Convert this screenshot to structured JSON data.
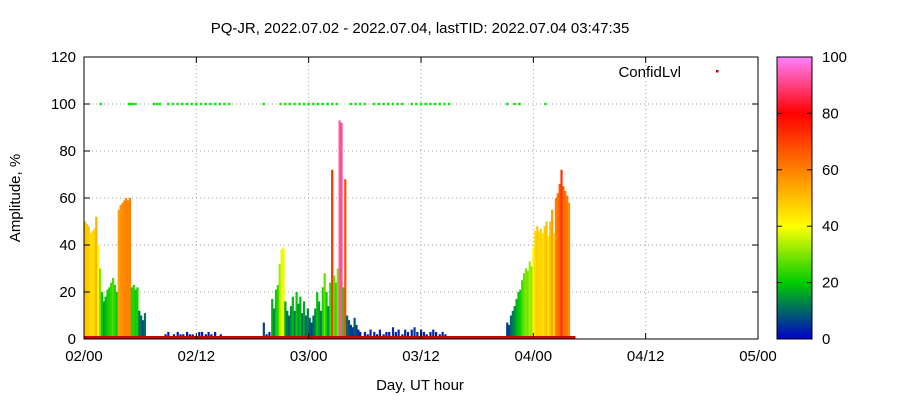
{
  "chart_data": {
    "type": "bar",
    "title": "PQ-JR, 2022.07.02 - 2022.07.04, lastTID: 2022.07.04 03:47:35",
    "xlabel": "Day, UT hour",
    "ylabel": "Amplitude, %",
    "xlim": [
      0,
      72
    ],
    "ylim": [
      0,
      120
    ],
    "x_ticks": [
      "02/00",
      "02/12",
      "03/00",
      "03/12",
      "04/00",
      "04/12",
      "05/00"
    ],
    "y_ticks": [
      "0",
      "20",
      "40",
      "60",
      "80",
      "100",
      "120"
    ],
    "grid": true,
    "legend": {
      "label": "ConfidLvl",
      "placement": "top-right",
      "color": "#cc0000"
    },
    "colorbar": {
      "range": [
        0,
        100
      ],
      "ticks": [
        "0",
        "20",
        "40",
        "60",
        "80",
        "100"
      ],
      "colors": [
        "#0000cc",
        "#00cc00",
        "#ffff00",
        "#ff8000",
        "#ff0000",
        "#ff80ff"
      ]
    },
    "series": [
      {
        "name": "Amplitude",
        "color_by_value": true,
        "points": [
          [
            0.1,
            50
          ],
          [
            0.3,
            49
          ],
          [
            0.5,
            48
          ],
          [
            0.7,
            45
          ],
          [
            0.9,
            46
          ],
          [
            1.1,
            47
          ],
          [
            1.3,
            52
          ],
          [
            1.5,
            40
          ],
          [
            1.7,
            30
          ],
          [
            1.9,
            20
          ],
          [
            2.1,
            16
          ],
          [
            2.3,
            18
          ],
          [
            2.5,
            21
          ],
          [
            2.7,
            22
          ],
          [
            2.9,
            24
          ],
          [
            3.1,
            26
          ],
          [
            3.3,
            23
          ],
          [
            3.5,
            20
          ],
          [
            3.7,
            55
          ],
          [
            3.9,
            57
          ],
          [
            4.1,
            58
          ],
          [
            4.3,
            59
          ],
          [
            4.5,
            60
          ],
          [
            4.7,
            59
          ],
          [
            4.9,
            60
          ],
          [
            5.1,
            22
          ],
          [
            5.3,
            23
          ],
          [
            5.5,
            21
          ],
          [
            5.7,
            22
          ],
          [
            5.9,
            12
          ],
          [
            6.1,
            10
          ],
          [
            6.3,
            8
          ],
          [
            6.5,
            11
          ],
          [
            8.5,
            1
          ],
          [
            8.7,
            2
          ],
          [
            9,
            3
          ],
          [
            9.3,
            1
          ],
          [
            9.6,
            2
          ],
          [
            10,
            3
          ],
          [
            10.3,
            2
          ],
          [
            10.6,
            2
          ],
          [
            11,
            3
          ],
          [
            11.3,
            2
          ],
          [
            11.6,
            2
          ],
          [
            12,
            1
          ],
          [
            12.3,
            3
          ],
          [
            12.6,
            3
          ],
          [
            13,
            2
          ],
          [
            13.3,
            3
          ],
          [
            13.6,
            2
          ],
          [
            14,
            3
          ],
          [
            14.3,
            1
          ],
          [
            14.6,
            2
          ],
          [
            15,
            1
          ],
          [
            15.3,
            1
          ],
          [
            19.2,
            7
          ],
          [
            19.5,
            2
          ],
          [
            19.8,
            3
          ],
          [
            20.1,
            17
          ],
          [
            20.3,
            13
          ],
          [
            20.5,
            21
          ],
          [
            20.7,
            23
          ],
          [
            20.9,
            32
          ],
          [
            21.1,
            38
          ],
          [
            21.3,
            39
          ],
          [
            21.5,
            16
          ],
          [
            21.7,
            12
          ],
          [
            21.9,
            10
          ],
          [
            22.1,
            14
          ],
          [
            22.3,
            18
          ],
          [
            22.5,
            12
          ],
          [
            22.7,
            20
          ],
          [
            22.9,
            15
          ],
          [
            23.1,
            18
          ],
          [
            23.3,
            11
          ],
          [
            23.5,
            16
          ],
          [
            23.7,
            10
          ],
          [
            23.9,
            13
          ],
          [
            24.1,
            9
          ],
          [
            24.3,
            7
          ],
          [
            24.5,
            10
          ],
          [
            24.7,
            13
          ],
          [
            24.9,
            20
          ],
          [
            25.1,
            16
          ],
          [
            25.3,
            12
          ],
          [
            25.5,
            22
          ],
          [
            25.7,
            28
          ],
          [
            25.9,
            20
          ],
          [
            26.1,
            14
          ],
          [
            26.3,
            24
          ],
          [
            26.5,
            72
          ],
          [
            26.7,
            27
          ],
          [
            26.9,
            24
          ],
          [
            27.1,
            30
          ],
          [
            27.3,
            93
          ],
          [
            27.5,
            92
          ],
          [
            27.7,
            22
          ],
          [
            27.9,
            68
          ],
          [
            28.1,
            10
          ],
          [
            28.3,
            8
          ],
          [
            28.5,
            6
          ],
          [
            28.7,
            5
          ],
          [
            28.9,
            9
          ],
          [
            29.1,
            6
          ],
          [
            29.3,
            4
          ],
          [
            29.5,
            3
          ],
          [
            30,
            3
          ],
          [
            30.3,
            2
          ],
          [
            30.6,
            4
          ],
          [
            31,
            3
          ],
          [
            31.3,
            2
          ],
          [
            31.6,
            4
          ],
          [
            32,
            2
          ],
          [
            32.3,
            3
          ],
          [
            32.6,
            3
          ],
          [
            33,
            5
          ],
          [
            33.3,
            3
          ],
          [
            33.6,
            4
          ],
          [
            34,
            2
          ],
          [
            34.3,
            4
          ],
          [
            34.6,
            3
          ],
          [
            35,
            4
          ],
          [
            35.3,
            5
          ],
          [
            35.6,
            3
          ],
          [
            36,
            4
          ],
          [
            36.3,
            3
          ],
          [
            36.6,
            2
          ],
          [
            37,
            3
          ],
          [
            37.3,
            4
          ],
          [
            37.6,
            3
          ],
          [
            38,
            2
          ],
          [
            38.3,
            3
          ],
          [
            38.6,
            2
          ],
          [
            39,
            1
          ],
          [
            39.3,
            1
          ],
          [
            45.2,
            7
          ],
          [
            45.4,
            6
          ],
          [
            45.6,
            10
          ],
          [
            45.8,
            12
          ],
          [
            46,
            14
          ],
          [
            46.2,
            17
          ],
          [
            46.4,
            20
          ],
          [
            46.6,
            21
          ],
          [
            46.8,
            25
          ],
          [
            47,
            28
          ],
          [
            47.2,
            30
          ],
          [
            47.4,
            29
          ],
          [
            47.6,
            33
          ],
          [
            47.8,
            31
          ],
          [
            48,
            39
          ],
          [
            48.2,
            46
          ],
          [
            48.4,
            48
          ],
          [
            48.6,
            46
          ],
          [
            48.8,
            47
          ],
          [
            49,
            45
          ],
          [
            49.2,
            48
          ],
          [
            49.4,
            50
          ],
          [
            49.6,
            44
          ],
          [
            49.8,
            50
          ],
          [
            50,
            55
          ],
          [
            50.2,
            45
          ],
          [
            50.4,
            60
          ],
          [
            50.6,
            62
          ],
          [
            50.8,
            66
          ],
          [
            51,
            72
          ],
          [
            51.2,
            65
          ],
          [
            51.4,
            63
          ],
          [
            51.6,
            61
          ],
          [
            51.8,
            58
          ]
        ]
      },
      {
        "name": "ConfidLvl",
        "color": "#00ee00",
        "points": [
          [
            1.8,
            100
          ],
          [
            4.8,
            100
          ],
          [
            5.0,
            100
          ],
          [
            5.2,
            100
          ],
          [
            5.5,
            100
          ],
          [
            7.5,
            100
          ],
          [
            7.8,
            100
          ],
          [
            8.1,
            100
          ],
          [
            9.0,
            100
          ],
          [
            9.5,
            100
          ],
          [
            10,
            100
          ],
          [
            10.5,
            100
          ],
          [
            11,
            100
          ],
          [
            11.5,
            100
          ],
          [
            12,
            100
          ],
          [
            12.5,
            100
          ],
          [
            13,
            100
          ],
          [
            13.5,
            100
          ],
          [
            14,
            100
          ],
          [
            14.5,
            100
          ],
          [
            15,
            100
          ],
          [
            15.5,
            100
          ],
          [
            19.2,
            100
          ],
          [
            21,
            100
          ],
          [
            21.5,
            100
          ],
          [
            22,
            100
          ],
          [
            22.5,
            100
          ],
          [
            23,
            100
          ],
          [
            23.5,
            100
          ],
          [
            24,
            100
          ],
          [
            24.5,
            100
          ],
          [
            25,
            100
          ],
          [
            25.5,
            100
          ],
          [
            26,
            100
          ],
          [
            26.5,
            100
          ],
          [
            27,
            100
          ],
          [
            28.5,
            100
          ],
          [
            29,
            100
          ],
          [
            29.5,
            100
          ],
          [
            30,
            100
          ],
          [
            31,
            100
          ],
          [
            31.5,
            100
          ],
          [
            32,
            100
          ],
          [
            32.5,
            100
          ],
          [
            33,
            100
          ],
          [
            33.5,
            100
          ],
          [
            34,
            100
          ],
          [
            35,
            100
          ],
          [
            35.5,
            100
          ],
          [
            36,
            100
          ],
          [
            36.5,
            100
          ],
          [
            37,
            100
          ],
          [
            37.5,
            100
          ],
          [
            38,
            100
          ],
          [
            38.5,
            100
          ],
          [
            39,
            100
          ],
          [
            45.2,
            100
          ],
          [
            46,
            100
          ],
          [
            46.5,
            100
          ],
          [
            49.3,
            100
          ]
        ]
      },
      {
        "name": "Baseline",
        "color": "#cc0000",
        "x_start": 0,
        "x_end": 52.5,
        "y": 0
      }
    ]
  }
}
